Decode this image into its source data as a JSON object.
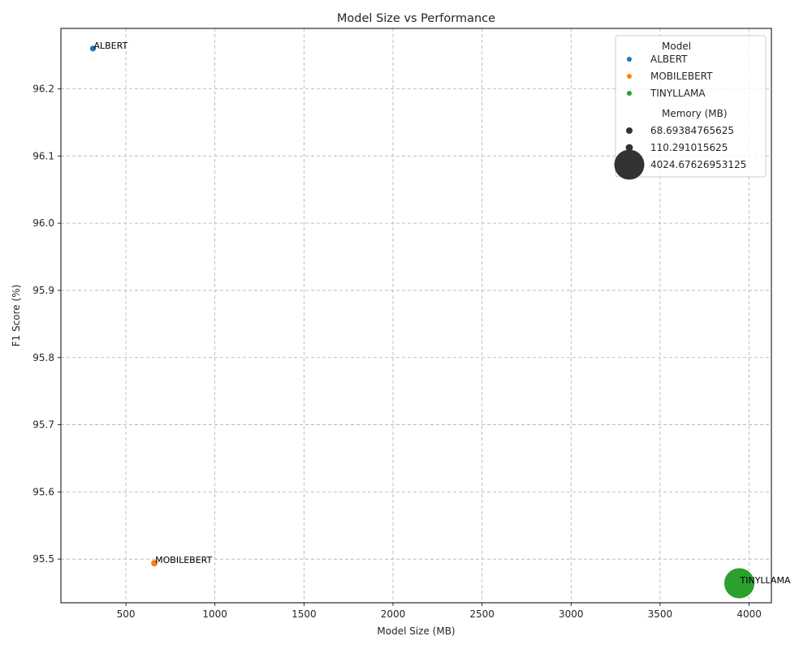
{
  "chart_data": {
    "type": "scatter",
    "title": "Model Size vs Performance",
    "xlabel": "Model Size (MB)",
    "ylabel": "F1 Score (%)",
    "xlim": [
      135,
      4125
    ],
    "ylim": [
      95.435,
      96.29
    ],
    "xticks": [
      500,
      1000,
      1500,
      2000,
      2500,
      3000,
      3500,
      4000
    ],
    "yticks": [
      95.5,
      95.6,
      95.7,
      95.8,
      95.9,
      96.0,
      96.1,
      96.2
    ],
    "ytick_labels": [
      "95.5",
      "95.6",
      "95.7",
      "95.8",
      "95.9",
      "96.0",
      "96.1",
      "96.2"
    ],
    "grid": true,
    "legend_position": "top-right",
    "series": [
      {
        "name": "ALBERT",
        "color": "#1f77b4",
        "x": 315,
        "y": 96.26,
        "memory_mb": 68.69384765625,
        "annotation": "ALBERT"
      },
      {
        "name": "MOBILEBERT",
        "color": "#ff7f0e",
        "x": 660,
        "y": 95.494,
        "memory_mb": 110.291015625,
        "annotation": "MOBILEBERT"
      },
      {
        "name": "TINYLLAMA",
        "color": "#2ca02c",
        "x": 3945,
        "y": 95.464,
        "memory_mb": 4024.67626953125,
        "annotation": "TINYLLAMA"
      }
    ],
    "legend": {
      "hue_title": "Model",
      "hue_entries": [
        "ALBERT",
        "MOBILEBERT",
        "TINYLLAMA"
      ],
      "size_title": "Memory (MB)",
      "size_entries": [
        "68.69384765625",
        "110.291015625",
        "4024.67626953125"
      ]
    }
  }
}
